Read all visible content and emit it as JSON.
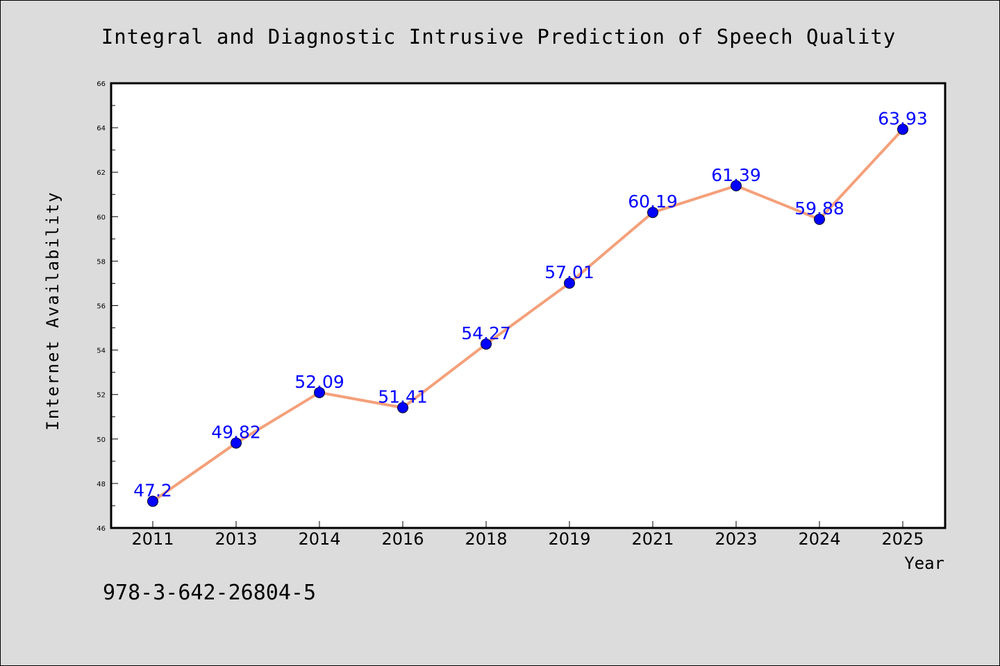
{
  "chart_data": {
    "type": "line",
    "title": "Integral and Diagnostic Intrusive Prediction of Speech Quality",
    "xlabel": "Year",
    "ylabel": "Internet Availability",
    "categories": [
      "2011",
      "2013",
      "2014",
      "2016",
      "2018",
      "2019",
      "2021",
      "2023",
      "2024",
      "2025"
    ],
    "values": [
      47.2,
      49.82,
      52.09,
      51.41,
      54.27,
      57.01,
      60.19,
      61.39,
      59.88,
      63.93
    ],
    "data_labels": [
      "47.2",
      "49.82",
      "52.09",
      "51.41",
      "54.27",
      "57.01",
      "60.19",
      "61.39",
      "59.88",
      "63.93"
    ],
    "ylim": [
      46,
      66
    ],
    "y_ticks": [
      "46",
      "48",
      "50",
      "52",
      "54",
      "56",
      "58",
      "60",
      "62",
      "64",
      "66"
    ],
    "grid": false,
    "legend": "none",
    "line_color": "#f4a07a",
    "marker_color": "#0000ff",
    "label_color": "#0000ff"
  },
  "footer_text": "978-3-642-26804-5"
}
